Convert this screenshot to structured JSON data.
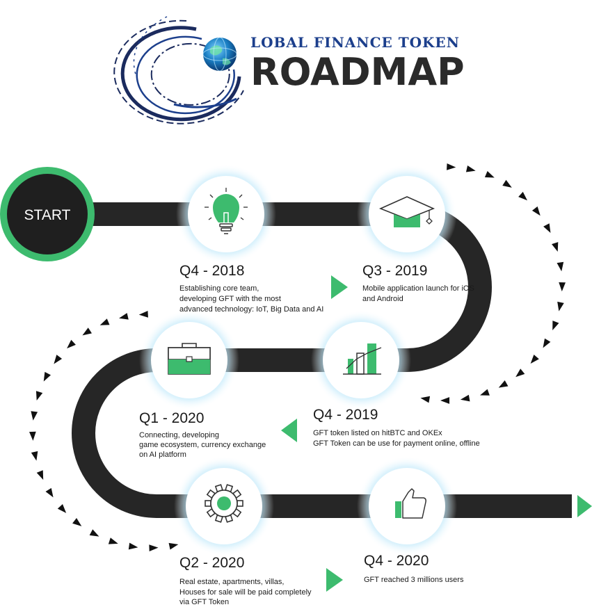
{
  "header": {
    "logo_subtitle": "LOBAL FINANCE TOKEN",
    "logo_title": "ROADMAP"
  },
  "start": {
    "label": "START"
  },
  "colors": {
    "accent_green": "#3dbb6e",
    "road": "#262626",
    "glow": "#a8ddf7",
    "logo_blue": "#1c3f8c"
  },
  "milestones": [
    {
      "period": "Q4 - 2018",
      "icon": "lightbulb-icon",
      "lines": [
        "Establishing core team,",
        "developing GFT with the most",
        "advanced technology: IoT, Big Data and AI"
      ]
    },
    {
      "period": "Q3 - 2019",
      "icon": "graduation-cap-icon",
      "lines": [
        "Mobile application launch for iOS",
        "and Android"
      ]
    },
    {
      "period": "Q4 - 2019",
      "icon": "growth-chart-icon",
      "lines": [
        "GFT token listed on hitBTC and OKEx",
        "GFT Token can be use for payment online, offline"
      ]
    },
    {
      "period": "Q1 - 2020",
      "icon": "briefcase-icon",
      "lines": [
        "Connecting, developing",
        "game ecosystem, currency exchange",
        "on AI platform"
      ]
    },
    {
      "period": "Q2 - 2020",
      "icon": "gear-icon",
      "lines": [
        "Real estate, apartments, villas,",
        "Houses for sale will be paid completely",
        "via GFT Token"
      ]
    },
    {
      "period": "Q4 - 2020",
      "icon": "thumbs-up-icon",
      "lines": [
        "GFT reached 3 millions users"
      ]
    }
  ]
}
